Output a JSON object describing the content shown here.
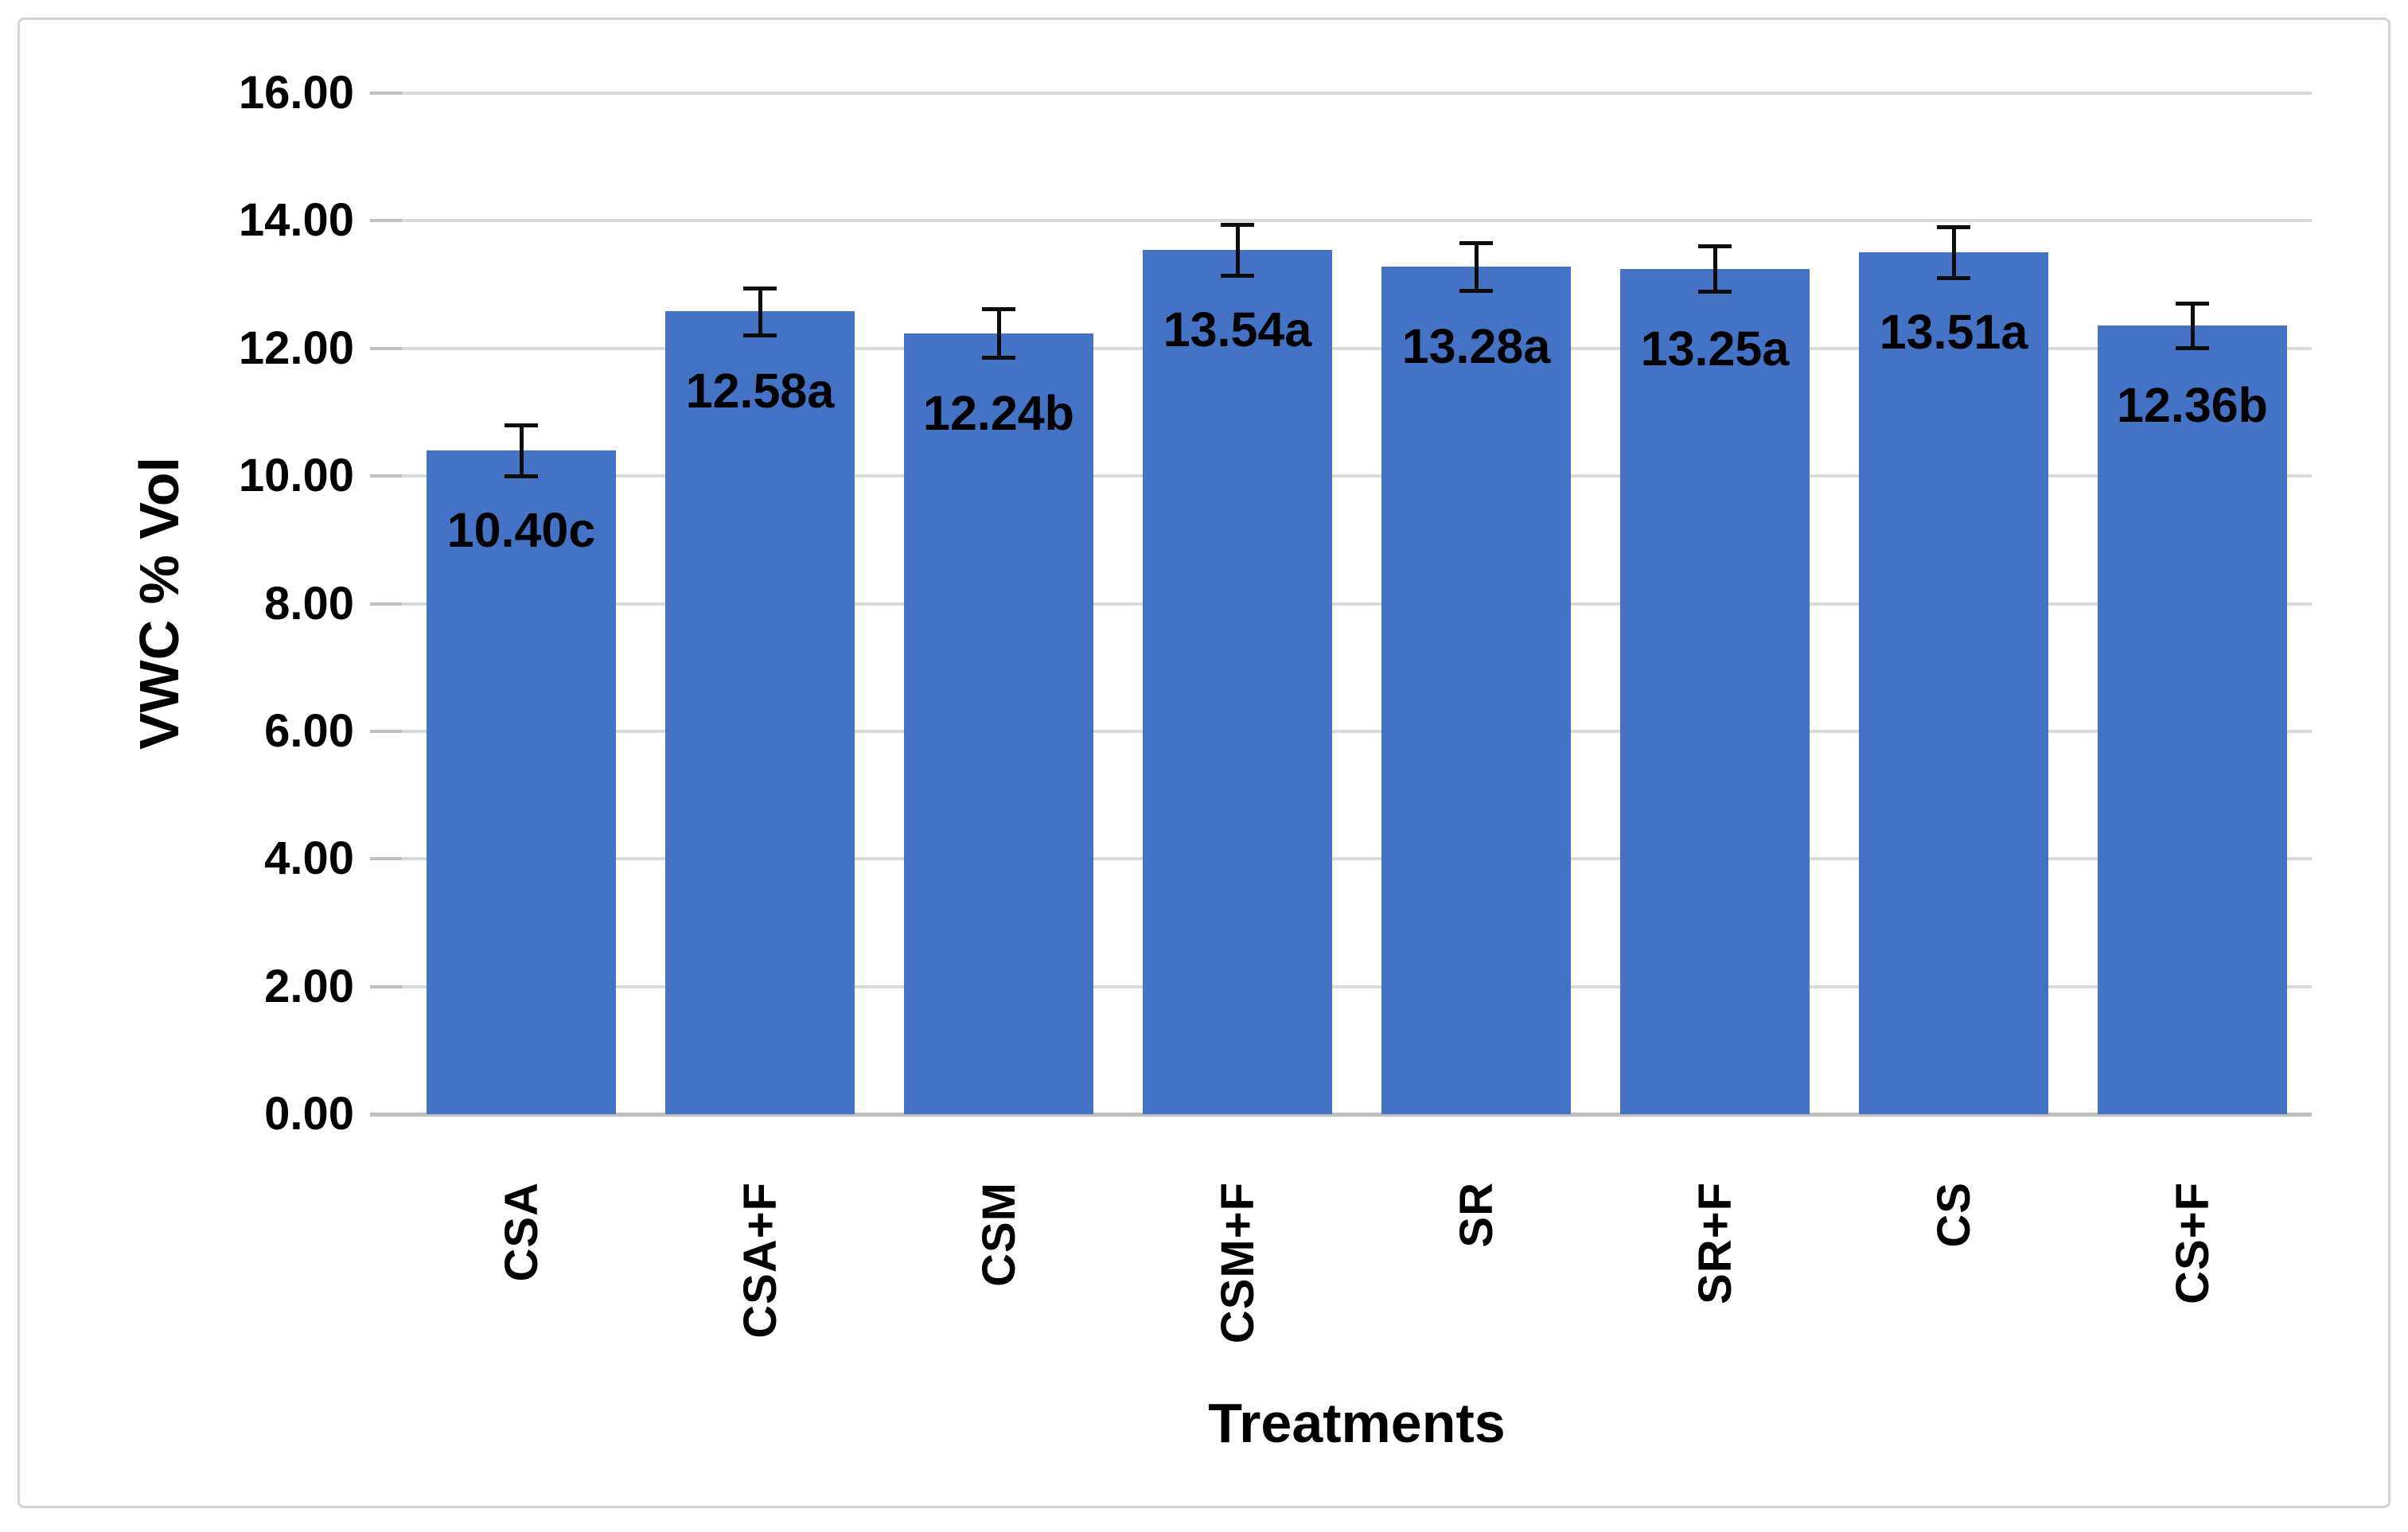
{
  "chart_data": {
    "type": "bar",
    "title": "",
    "xlabel": "Treatments",
    "ylabel": "VWC % Vol",
    "categories": [
      "CSA",
      "CSA+F",
      "CSM",
      "CSM+F",
      "SR",
      "SR+F",
      "CS",
      "CS+F"
    ],
    "values": [
      10.4,
      12.58,
      12.24,
      13.54,
      13.28,
      13.25,
      13.51,
      12.36
    ],
    "data_labels": [
      "10.40c",
      "12.58a",
      "12.24b",
      "13.54a",
      "13.28a",
      "13.25a",
      "13.51a",
      "12.36b"
    ],
    "error_bars": [
      0.4,
      0.37,
      0.38,
      0.4,
      0.37,
      0.36,
      0.4,
      0.35
    ],
    "ylim": [
      0,
      16
    ],
    "ytick_step": 2,
    "ytick_labels": [
      "0.00",
      "2.00",
      "4.00",
      "6.00",
      "8.00",
      "10.00",
      "12.00",
      "14.00",
      "16.00"
    ],
    "grid": "horizontal-gridlines-on",
    "legend": "none",
    "bar_color": "#4472C4",
    "gridline_color": "#D9D9D9",
    "axis_line_color": "#BFBFBF",
    "error_bar_color": "#0D0D0D",
    "text_color": "#000000"
  }
}
